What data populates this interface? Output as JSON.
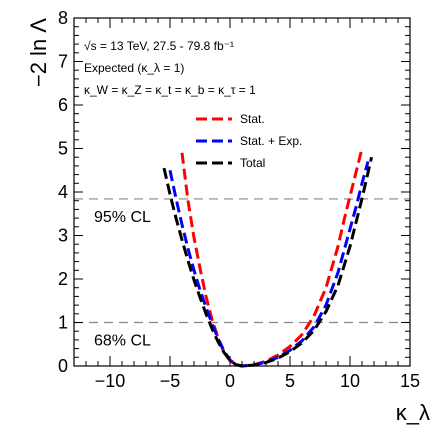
{
  "chart_data": {
    "type": "line",
    "xlabel": "κ_λ",
    "ylabel": "−2 ln Λ",
    "xlim": [
      -13,
      15
    ],
    "ylim": [
      0,
      8
    ],
    "x_ticks": [
      -10,
      -5,
      0,
      5,
      10,
      15
    ],
    "x_tick_labels": [
      "−10",
      "−5",
      "0",
      "5",
      "10",
      "15"
    ],
    "y_ticks": [
      0,
      1,
      2,
      3,
      4,
      5,
      6,
      7,
      8
    ],
    "y_tick_labels": [
      "0",
      "1",
      "2",
      "3",
      "4",
      "5",
      "6",
      "7",
      "8"
    ],
    "info_lines": [
      "√s = 13 TeV, 27.5 - 79.8 fb⁻¹",
      "Expected (κ_λ = 1)",
      "κ_W = κ_Z = κ_t = κ_b = κ_τ = 1"
    ],
    "legend_position": "top-right",
    "reference_lines": [
      {
        "y": 3.84,
        "label": "95% CL"
      },
      {
        "y": 1.0,
        "label": "68% CL"
      }
    ],
    "series": [
      {
        "name": "Stat.",
        "color": "#ff0000",
        "x": [
          -4.0,
          -3.5,
          -3.0,
          -2.5,
          -2.0,
          -1.5,
          -1.0,
          -0.5,
          0,
          0.5,
          1,
          2,
          3,
          4,
          5,
          6,
          7,
          8,
          9,
          9.5,
          10,
          10.5,
          11.0
        ],
        "y": [
          4.9,
          3.8,
          2.95,
          2.25,
          1.6,
          1.07,
          0.65,
          0.32,
          0.12,
          0.03,
          0.0,
          0.03,
          0.11,
          0.25,
          0.45,
          0.72,
          1.15,
          1.8,
          2.75,
          3.35,
          3.9,
          4.45,
          5.0
        ]
      },
      {
        "name": "Stat. + Exp.",
        "color": "#0000ff",
        "x": [
          -5.0,
          -4.5,
          -4.0,
          -3.5,
          -3.0,
          -2.5,
          -2.0,
          -1.5,
          -1.0,
          -0.5,
          0,
          0.5,
          1,
          2,
          3,
          4,
          5,
          6,
          7,
          8,
          9,
          10,
          10.5,
          11.0,
          11.5
        ],
        "y": [
          4.5,
          3.85,
          3.25,
          2.7,
          2.2,
          1.75,
          1.35,
          0.98,
          0.63,
          0.35,
          0.14,
          0.03,
          0.0,
          0.02,
          0.09,
          0.2,
          0.36,
          0.58,
          0.9,
          1.4,
          2.15,
          3.15,
          3.65,
          4.2,
          4.7
        ]
      },
      {
        "name": "Total",
        "color": "#000000",
        "x": [
          -5.5,
          -5.0,
          -4.5,
          -4.0,
          -3.5,
          -3.0,
          -2.5,
          -2.0,
          -1.5,
          -1.0,
          -0.5,
          0,
          0.5,
          1,
          2,
          3,
          4,
          5,
          6,
          7,
          8,
          9,
          10,
          11,
          11.8
        ],
        "y": [
          4.55,
          3.95,
          3.4,
          2.9,
          2.42,
          1.98,
          1.58,
          1.2,
          0.86,
          0.56,
          0.31,
          0.13,
          0.03,
          0.0,
          0.02,
          0.08,
          0.18,
          0.33,
          0.53,
          0.82,
          1.25,
          1.85,
          2.75,
          3.85,
          4.8
        ]
      }
    ]
  }
}
